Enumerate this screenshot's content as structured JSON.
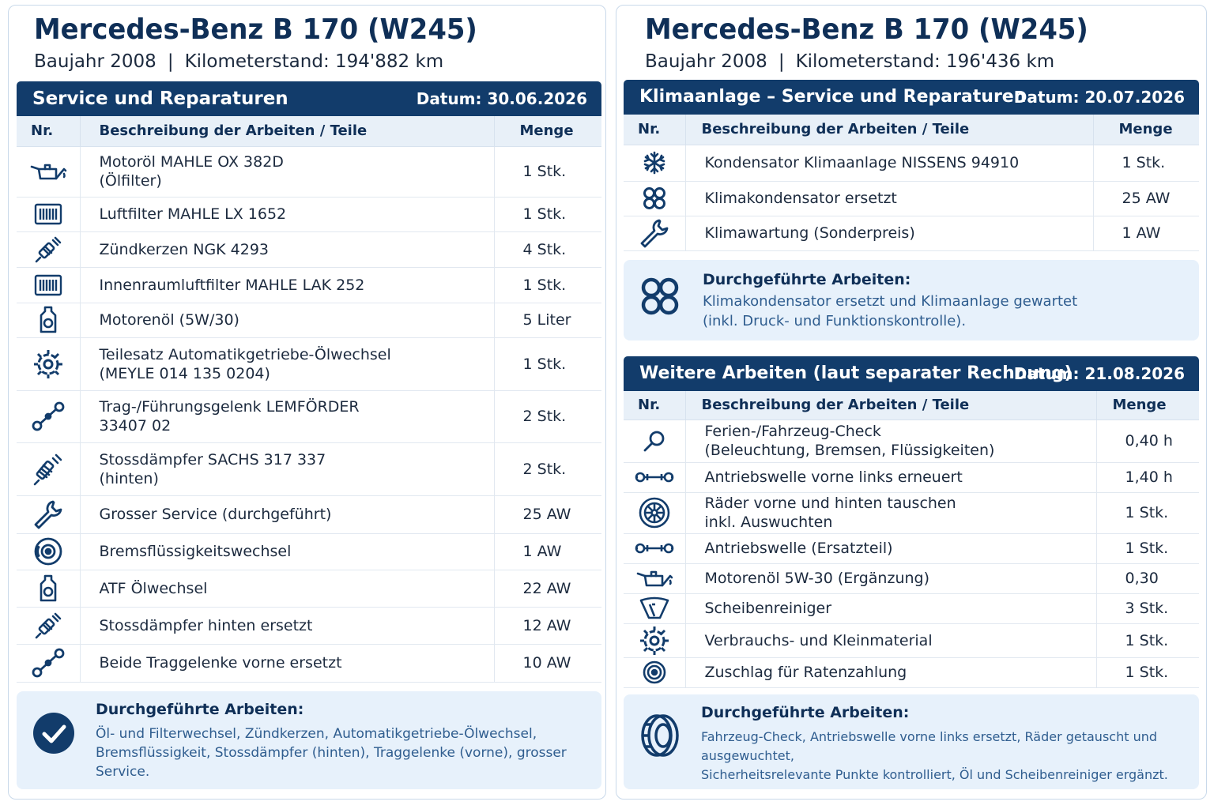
{
  "left": {
    "car_title": "Mercedes-Benz B 170 (W245)",
    "baujahr": "Baujahr 2008",
    "separator": "|",
    "km": "Kilometerstand: 194'882 km",
    "section": {
      "title": "Service und Reparaturen",
      "date": "Datum: 30.06.2026",
      "col_nr": "Nr.",
      "col_desc": "Beschreibung der Arbeiten / Teile",
      "col_qty": "Menge",
      "rows": [
        {
          "icon": "oil-can-icon",
          "line1": "Motoröl MAHLE OX 382D",
          "line2": "(Ölfilter)",
          "qty": "1 Stk."
        },
        {
          "icon": "air-filter-icon",
          "line1": "Luftfilter MAHLE LX 1652",
          "line2": "",
          "qty": "1 Stk."
        },
        {
          "icon": "spark-plug-icon",
          "line1": "Zündkerzen NGK 4293",
          "line2": "",
          "qty": "4 Stk."
        },
        {
          "icon": "air-filter-icon",
          "line1": "Innenraumluftfilter MAHLE LAK 252",
          "line2": "",
          "qty": "1 Stk."
        },
        {
          "icon": "oil-bottle-icon",
          "line1": "Motorenöl (5W/30)",
          "line2": "",
          "qty": "5 Liter"
        },
        {
          "icon": "gear-icon",
          "line1": "Teilesatz Automatikgetriebe-Ölwechsel",
          "line2": "(MEYLE 014 135 0204)",
          "qty": "1 Stk."
        },
        {
          "icon": "ball-joint-icon",
          "line1": "Trag-/Führungsgelenk LEMFÖRDER",
          "line2": "33407 02",
          "qty": "2 Stk."
        },
        {
          "icon": "shock-absorber-icon",
          "line1": "Stossdämpfer SACHS 317 337",
          "line2": "(hinten)",
          "qty": "2 Stk."
        },
        {
          "icon": "wrench-icon",
          "line1": "Grosser Service (durchgeführt)",
          "line2": "",
          "qty": "25 AW"
        },
        {
          "icon": "brake-disc-icon",
          "line1": "Bremsflüssigkeitswechsel",
          "line2": "",
          "qty": "1 AW"
        },
        {
          "icon": "oil-bottle-icon",
          "line1": "ATF Ölwechsel",
          "line2": "",
          "qty": "22 AW"
        },
        {
          "icon": "spark-plug-icon",
          "line1": "Stossdämpfer hinten ersetzt",
          "line2": "",
          "qty": "12 AW"
        },
        {
          "icon": "ball-joint-icon",
          "line1": "Beide Traggelenke vorne ersetzt",
          "line2": "",
          "qty": "10 AW"
        }
      ]
    },
    "summary": {
      "icon": "checkmark-icon",
      "title": "Durchgeführte Arbeiten:",
      "line1": "Öl- und Filterwechsel, Zündkerzen, Automatikgetriebe-Ölwechsel,",
      "line2": "Bremsflüssigkeit, Stossdämpfer (hinten), Traggelenke (vorne), grosser Service."
    }
  },
  "right": {
    "car_title": "Mercedes-Benz B 170 (W245)",
    "baujahr": "Baujahr 2008",
    "separator": "|",
    "km": "Kilometerstand: 196'436 km",
    "section1": {
      "title": "Klimaanlage – Service und Reparaturen",
      "date": "Datum: 20.07.2026",
      "col_nr": "Nr.",
      "col_desc": "Beschreibung der Arbeiten / Teile",
      "col_qty": "Menge",
      "rows": [
        {
          "icon": "snowflake-icon",
          "line1": "Kondensator Klimaanlage NISSENS 94910",
          "line2": "",
          "qty": "1 Stk."
        },
        {
          "icon": "condenser-icon",
          "line1": "Klimakondensator ersetzt",
          "line2": "",
          "qty": "25 AW"
        },
        {
          "icon": "wrench-icon",
          "line1": "Klimawartung (Sonderpreis)",
          "line2": "",
          "qty": "1 AW"
        }
      ]
    },
    "summary1": {
      "icon": "condenser-icon",
      "title": "Durchgeführte Arbeiten:",
      "line1": "Klimakondensator ersetzt und Klimaanlage gewartet",
      "line2": "(inkl. Druck- und Funktionskontrolle)."
    },
    "section2": {
      "title": "Weitere Arbeiten (laut separater Rechnung)",
      "date": "Datum: 21.08.2026",
      "col_nr": "Nr.",
      "col_desc": "Beschreibung der Arbeiten / Teile",
      "col_qty": "Menge",
      "rows": [
        {
          "icon": "magnifier-icon",
          "line1": "Ferien-/Fahrzeug-Check",
          "line2": "(Beleuchtung, Bremsen, Flüssigkeiten)",
          "qty": "0,40 h"
        },
        {
          "icon": "drive-shaft-icon",
          "line1": "Antriebswelle vorne links erneuert",
          "line2": "",
          "qty": "1,40 h"
        },
        {
          "icon": "wheel-icon",
          "line1": "Räder vorne und hinten tauschen",
          "line2": "inkl. Auswuchten",
          "qty": "1 Stk."
        },
        {
          "icon": "drive-shaft-icon",
          "line1": "Antriebswelle (Ersatzteil)",
          "line2": "",
          "qty": "1 Stk."
        },
        {
          "icon": "oil-can-icon",
          "line1": "Motorenöl 5W-30 (Ergänzung)",
          "line2": "",
          "qty": "0,30"
        },
        {
          "icon": "windshield-washer-icon",
          "line1": "Scheibenreiniger",
          "line2": "",
          "qty": "3 Stk."
        },
        {
          "icon": "gear-icon",
          "line1": "Verbrauchs- und Kleinmaterial",
          "line2": "",
          "qty": "1 Stk."
        },
        {
          "icon": "target-icon",
          "line1": "Zuschlag für Ratenzahlung",
          "line2": "",
          "qty": "1 Stk."
        }
      ]
    },
    "summary2": {
      "icon": "tire-icon",
      "title": "Durchgeführte Arbeiten:",
      "line1": "Fahrzeug-Check, Antriebswelle vorne links ersetzt, Räder getauscht und ausgewuchtet,",
      "line2": "Sicherheitsrelevante Punkte kontrolliert, Öl und Scheibenreiniger ergänzt."
    }
  }
}
